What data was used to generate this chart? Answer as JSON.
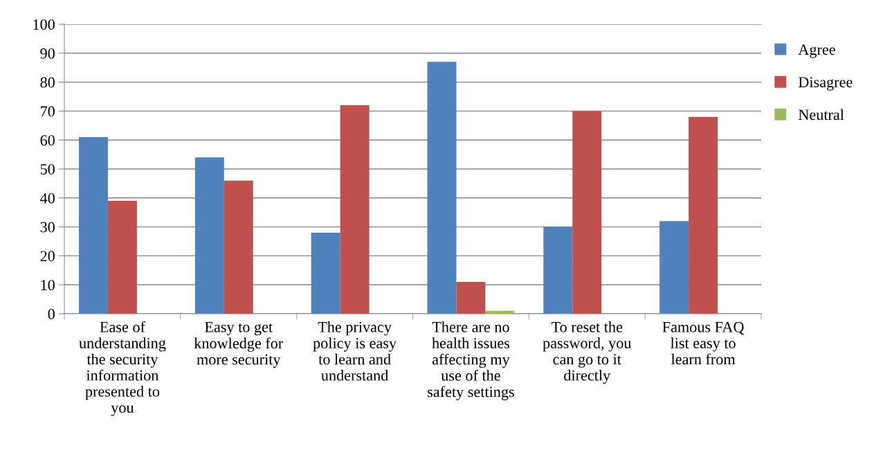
{
  "chart_data": {
    "type": "bar",
    "categories": [
      "Ease of\nunderstanding\nthe security\ninformation\npresented to\nyou",
      "Easy to get\nknowledge for\nmore security",
      "The privacy\npolicy is easy\nto learn and\nunderstand",
      "There are no\nhealth issues\naffecting my\nuse of the\nsafety settings",
      "To reset the\npassword, you\ncan go to it\ndirectly",
      "Famous FAQ\nlist easy to\nlearn from"
    ],
    "series": [
      {
        "name": "Agree",
        "color": "#4f81bd",
        "values": [
          61,
          54,
          28,
          87,
          30,
          32
        ]
      },
      {
        "name": "Disagree",
        "color": "#c0504d",
        "values": [
          39,
          46,
          72,
          11,
          70,
          68
        ]
      },
      {
        "name": "Neutral",
        "color": "#9bbb59",
        "values": [
          0,
          0,
          0,
          1,
          0,
          0
        ]
      }
    ],
    "ylim": [
      0,
      100
    ],
    "yticks": [
      0,
      10,
      20,
      30,
      40,
      50,
      60,
      70,
      80,
      90,
      100
    ],
    "grid": "y",
    "legend": "right"
  }
}
